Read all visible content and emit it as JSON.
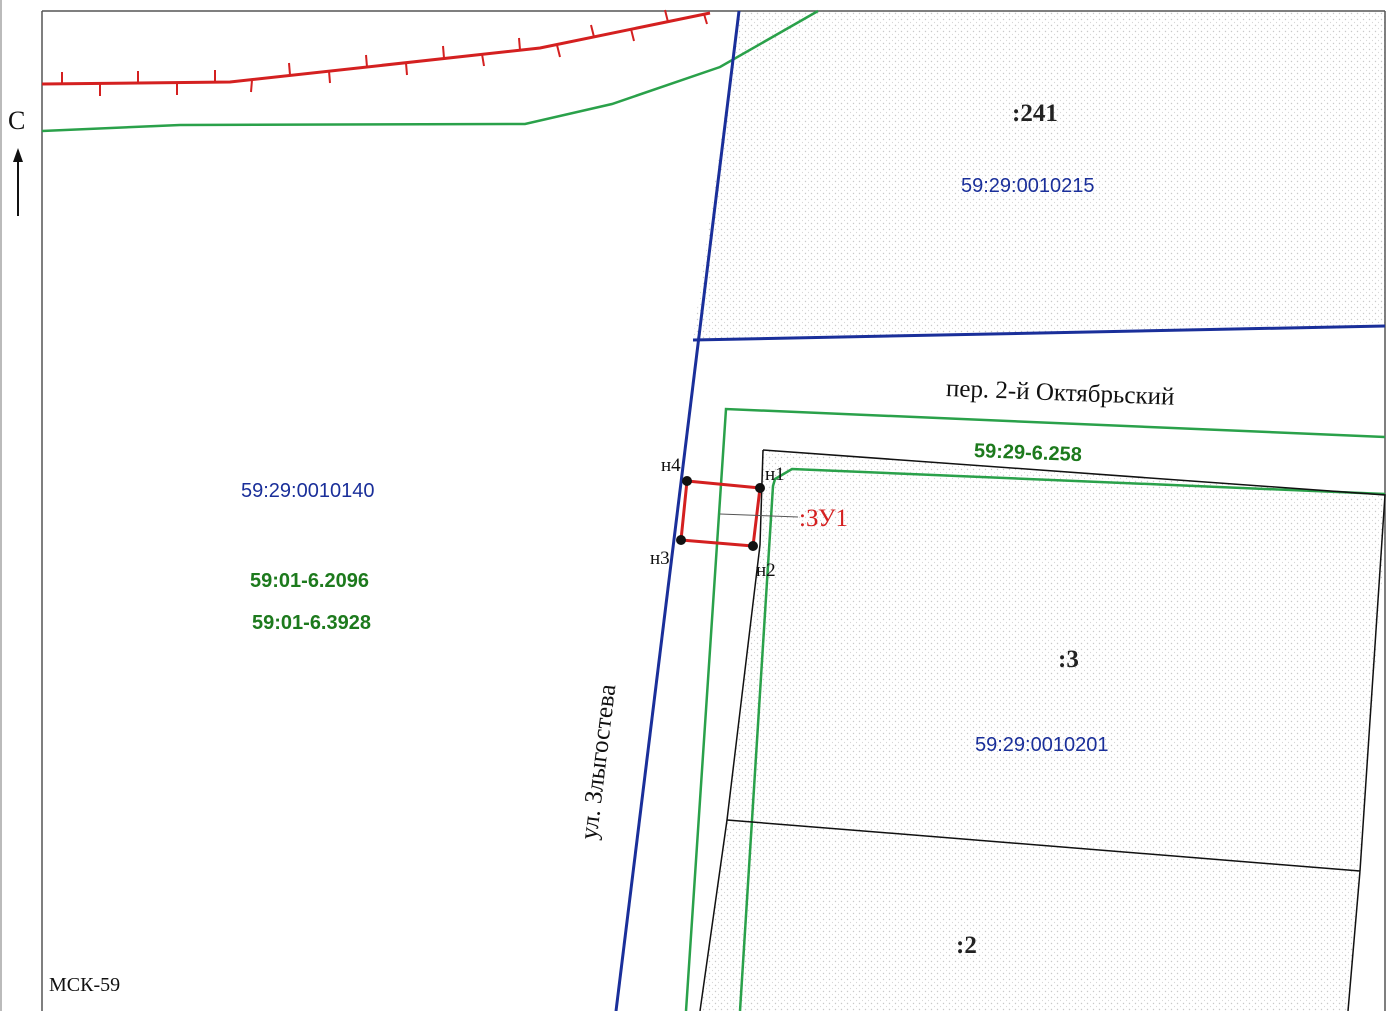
{
  "north_label": "С",
  "crs_label": "МСК-59",
  "streets": {
    "lane": "пер. 2-й Октябрьский",
    "street": "ул. Злыгостева"
  },
  "quarters": {
    "q1": "59:29:0010215",
    "q2": "59:29:0010140",
    "q3": "59:29:0010201"
  },
  "zones": {
    "z1": "59:29-6.258",
    "z2": "59:01-6.2096",
    "z3": "59:01-6.3928"
  },
  "parcels": {
    "p241": ":241",
    "p3": ":3",
    "p2": ":2"
  },
  "new_parcel": ":ЗУ1",
  "vertices": {
    "n1": "н1",
    "n2": "н2",
    "n3": "н3",
    "n4": "н4"
  },
  "colors": {
    "quarter_boundary": "#1a2f9a",
    "zone_boundary": "#2aa14a",
    "new_parcel_boundary": "#d42020",
    "existing_parcel_boundary": "#111111"
  }
}
